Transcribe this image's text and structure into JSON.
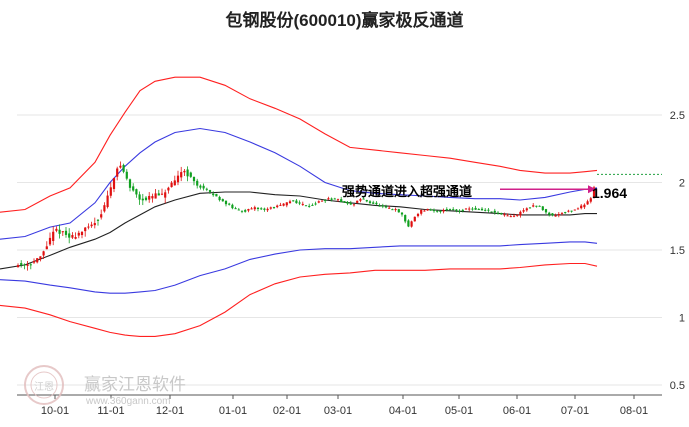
{
  "chart_data": {
    "type": "candlestick-channel",
    "title": "包钢股份(600010)赢家极反通道",
    "x_ticks": [
      "10-01",
      "11-01",
      "12-01",
      "01-01",
      "02-01",
      "03-01",
      "04-01",
      "05-01",
      "06-01",
      "07-01",
      "08-01"
    ],
    "y_ticks": [
      "2.5",
      "2",
      "1.5",
      "1",
      "0.5"
    ],
    "y_tick_values": [
      2.5,
      2.0,
      1.5,
      1.0,
      0.5
    ],
    "ylim": [
      0.45,
      2.65
    ],
    "annotation": "强势通道进入超强通道",
    "last_price_label": "1.964",
    "last_price": 1.964,
    "series": [
      {
        "key": "outer_upper",
        "color": "#ff2020",
        "points": [
          [
            0,
            1.78
          ],
          [
            25,
            1.8
          ],
          [
            50,
            1.9
          ],
          [
            70,
            1.96
          ],
          [
            95,
            2.15
          ],
          [
            110,
            2.35
          ],
          [
            125,
            2.52
          ],
          [
            140,
            2.68
          ],
          [
            155,
            2.75
          ],
          [
            175,
            2.78
          ],
          [
            200,
            2.78
          ],
          [
            225,
            2.72
          ],
          [
            250,
            2.62
          ],
          [
            275,
            2.55
          ],
          [
            300,
            2.47
          ],
          [
            325,
            2.36
          ],
          [
            350,
            2.26
          ],
          [
            375,
            2.24
          ],
          [
            400,
            2.22
          ],
          [
            425,
            2.2
          ],
          [
            450,
            2.18
          ],
          [
            475,
            2.15
          ],
          [
            500,
            2.12
          ],
          [
            520,
            2.09
          ],
          [
            545,
            2.07
          ],
          [
            570,
            2.07
          ],
          [
            585,
            2.08
          ],
          [
            597,
            2.09
          ]
        ]
      },
      {
        "key": "inner_upper",
        "color": "#3a3ae0",
        "points": [
          [
            0,
            1.58
          ],
          [
            25,
            1.6
          ],
          [
            50,
            1.67
          ],
          [
            70,
            1.7
          ],
          [
            95,
            1.85
          ],
          [
            110,
            2.0
          ],
          [
            125,
            2.12
          ],
          [
            140,
            2.22
          ],
          [
            155,
            2.3
          ],
          [
            175,
            2.37
          ],
          [
            200,
            2.4
          ],
          [
            225,
            2.37
          ],
          [
            250,
            2.3
          ],
          [
            275,
            2.22
          ],
          [
            300,
            2.12
          ],
          [
            325,
            2.0
          ],
          [
            350,
            1.94
          ],
          [
            375,
            1.92
          ],
          [
            400,
            1.91
          ],
          [
            425,
            1.9
          ],
          [
            450,
            1.89
          ],
          [
            475,
            1.88
          ],
          [
            500,
            1.88
          ],
          [
            520,
            1.87
          ],
          [
            545,
            1.89
          ],
          [
            570,
            1.93
          ],
          [
            585,
            1.95
          ],
          [
            597,
            1.96
          ]
        ]
      },
      {
        "key": "mid_line",
        "color": "#222222",
        "points": [
          [
            0,
            1.36
          ],
          [
            25,
            1.39
          ],
          [
            50,
            1.46
          ],
          [
            70,
            1.52
          ],
          [
            95,
            1.58
          ],
          [
            110,
            1.63
          ],
          [
            125,
            1.7
          ],
          [
            140,
            1.76
          ],
          [
            155,
            1.82
          ],
          [
            175,
            1.87
          ],
          [
            200,
            1.92
          ],
          [
            225,
            1.93
          ],
          [
            250,
            1.93
          ],
          [
            275,
            1.91
          ],
          [
            300,
            1.9
          ],
          [
            325,
            1.87
          ],
          [
            350,
            1.85
          ],
          [
            375,
            1.83
          ],
          [
            400,
            1.82
          ],
          [
            425,
            1.8
          ],
          [
            450,
            1.79
          ],
          [
            475,
            1.78
          ],
          [
            500,
            1.77
          ],
          [
            520,
            1.76
          ],
          [
            545,
            1.76
          ],
          [
            570,
            1.76
          ],
          [
            585,
            1.77
          ],
          [
            597,
            1.77
          ]
        ]
      },
      {
        "key": "inner_lower",
        "color": "#3a3ae0",
        "points": [
          [
            0,
            1.28
          ],
          [
            25,
            1.27
          ],
          [
            50,
            1.24
          ],
          [
            70,
            1.22
          ],
          [
            95,
            1.19
          ],
          [
            110,
            1.18
          ],
          [
            125,
            1.18
          ],
          [
            140,
            1.19
          ],
          [
            155,
            1.2
          ],
          [
            175,
            1.24
          ],
          [
            200,
            1.31
          ],
          [
            225,
            1.36
          ],
          [
            250,
            1.43
          ],
          [
            275,
            1.47
          ],
          [
            300,
            1.5
          ],
          [
            325,
            1.51
          ],
          [
            350,
            1.51
          ],
          [
            375,
            1.52
          ],
          [
            400,
            1.53
          ],
          [
            425,
            1.53
          ],
          [
            450,
            1.53
          ],
          [
            475,
            1.53
          ],
          [
            500,
            1.53
          ],
          [
            520,
            1.54
          ],
          [
            545,
            1.55
          ],
          [
            570,
            1.56
          ],
          [
            585,
            1.56
          ],
          [
            597,
            1.55
          ]
        ]
      },
      {
        "key": "outer_lower",
        "color": "#ff2020",
        "points": [
          [
            0,
            1.09
          ],
          [
            25,
            1.07
          ],
          [
            50,
            1.02
          ],
          [
            70,
            0.97
          ],
          [
            95,
            0.92
          ],
          [
            110,
            0.89
          ],
          [
            125,
            0.87
          ],
          [
            140,
            0.86
          ],
          [
            155,
            0.86
          ],
          [
            175,
            0.88
          ],
          [
            200,
            0.94
          ],
          [
            225,
            1.04
          ],
          [
            250,
            1.17
          ],
          [
            275,
            1.25
          ],
          [
            300,
            1.3
          ],
          [
            325,
            1.32
          ],
          [
            350,
            1.33
          ],
          [
            375,
            1.35
          ],
          [
            400,
            1.35
          ],
          [
            425,
            1.35
          ],
          [
            450,
            1.36
          ],
          [
            475,
            1.36
          ],
          [
            500,
            1.36
          ],
          [
            520,
            1.37
          ],
          [
            545,
            1.39
          ],
          [
            570,
            1.4
          ],
          [
            585,
            1.4
          ],
          [
            597,
            1.38
          ]
        ]
      }
    ],
    "price_path": [
      [
        18,
        1.39
      ],
      [
        30,
        1.4
      ],
      [
        40,
        1.44
      ],
      [
        48,
        1.55
      ],
      [
        55,
        1.65
      ],
      [
        62,
        1.63
      ],
      [
        70,
        1.59
      ],
      [
        80,
        1.63
      ],
      [
        90,
        1.67
      ],
      [
        100,
        1.75
      ],
      [
        108,
        1.9
      ],
      [
        114,
        2.05
      ],
      [
        120,
        2.13
      ],
      [
        125,
        2.06
      ],
      [
        130,
        1.96
      ],
      [
        135,
        1.93
      ],
      [
        140,
        1.88
      ],
      [
        148,
        1.88
      ],
      [
        155,
        1.91
      ],
      [
        162,
        1.9
      ],
      [
        168,
        1.96
      ],
      [
        175,
        2.0
      ],
      [
        182,
        2.1
      ],
      [
        188,
        2.06
      ],
      [
        195,
        1.99
      ],
      [
        205,
        1.95
      ],
      [
        215,
        1.9
      ],
      [
        225,
        1.85
      ],
      [
        235,
        1.8
      ],
      [
        245,
        1.79
      ],
      [
        255,
        1.81
      ],
      [
        265,
        1.8
      ],
      [
        275,
        1.82
      ],
      [
        285,
        1.84
      ],
      [
        292,
        1.87
      ],
      [
        300,
        1.84
      ],
      [
        310,
        1.83
      ],
      [
        320,
        1.86
      ],
      [
        330,
        1.88
      ],
      [
        338,
        1.87
      ],
      [
        345,
        1.85
      ],
      [
        352,
        1.83
      ],
      [
        360,
        1.88
      ],
      [
        368,
        1.86
      ],
      [
        378,
        1.83
      ],
      [
        385,
        1.81
      ],
      [
        395,
        1.8
      ],
      [
        402,
        1.76
      ],
      [
        408,
        1.67
      ],
      [
        414,
        1.74
      ],
      [
        420,
        1.79
      ],
      [
        428,
        1.8
      ],
      [
        436,
        1.78
      ],
      [
        444,
        1.8
      ],
      [
        452,
        1.8
      ],
      [
        460,
        1.79
      ],
      [
        468,
        1.81
      ],
      [
        478,
        1.8
      ],
      [
        488,
        1.79
      ],
      [
        498,
        1.77
      ],
      [
        508,
        1.75
      ],
      [
        515,
        1.75
      ],
      [
        522,
        1.79
      ],
      [
        530,
        1.82
      ],
      [
        538,
        1.83
      ],
      [
        546,
        1.78
      ],
      [
        554,
        1.75
      ],
      [
        562,
        1.78
      ],
      [
        570,
        1.79
      ],
      [
        578,
        1.81
      ],
      [
        585,
        1.84
      ],
      [
        592,
        1.9
      ],
      [
        597,
        2.06
      ]
    ],
    "colors": {
      "up": "#e01010",
      "down": "#10a020",
      "dotted_line": "#20a040",
      "arrow": "#d0208a"
    }
  },
  "watermark": {
    "text": "赢家江恩软件",
    "url": "www.360gann.com",
    "logo_text": "江恩"
  }
}
